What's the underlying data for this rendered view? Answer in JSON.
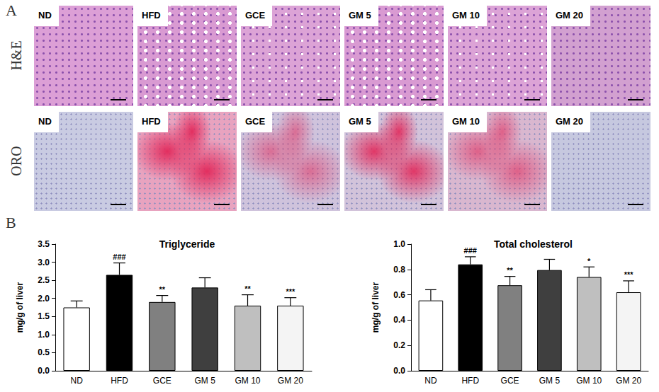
{
  "panel_a": {
    "label": "A",
    "rows": [
      {
        "label": "H&E",
        "panels": [
          "ND",
          "HFD",
          "GCE",
          "GM 5",
          "GM 10",
          "GM 20"
        ]
      },
      {
        "label": "ORO",
        "panels": [
          "ND",
          "HFD",
          "GCE",
          "GM 5",
          "GM 10",
          "GM 20"
        ]
      }
    ]
  },
  "panel_b": {
    "label": "B"
  },
  "chart_data": [
    {
      "type": "bar",
      "title": "Triglyceride",
      "y_label": "mg/g of liver",
      "categories": [
        "ND",
        "HFD",
        "GCE",
        "GM 5",
        "GM 10",
        "GM 20"
      ],
      "values": [
        1.75,
        2.65,
        1.9,
        2.3,
        1.8,
        1.8
      ],
      "errors": [
        0.18,
        0.33,
        0.18,
        0.27,
        0.3,
        0.22
      ],
      "annotations": [
        null,
        "###",
        "**",
        null,
        "**",
        "***"
      ],
      "colors": [
        "#ffffff",
        "#000000",
        "#808080",
        "#3f3f3f",
        "#bfbfbf",
        "#f4f4f4"
      ],
      "ylim": [
        0,
        3.5
      ],
      "yticks": [
        {
          "value": 0,
          "label": "0.0"
        },
        0.5,
        {
          "value": 1,
          "label": "1.0"
        },
        1.5,
        {
          "value": 2,
          "label": "2.0"
        },
        2.5,
        {
          "value": 3,
          "label": "3.0"
        },
        3.5
      ],
      "grid": false
    },
    {
      "type": "bar",
      "title": "Total cholesterol",
      "y_label": "mg/g of liver",
      "categories": [
        "ND",
        "HFD",
        "GCE",
        "GM 5",
        "GM 10",
        "GM 20"
      ],
      "values": [
        0.555,
        0.84,
        0.675,
        0.795,
        0.74,
        0.62
      ],
      "errors": [
        0.085,
        0.06,
        0.07,
        0.085,
        0.08,
        0.09
      ],
      "annotations": [
        null,
        "###",
        "**",
        null,
        "*",
        "***"
      ],
      "colors": [
        "#ffffff",
        "#000000",
        "#808080",
        "#3f3f3f",
        "#bfbfbf",
        "#f4f4f4"
      ],
      "ylim": [
        0,
        1
      ],
      "yticks": [
        {
          "value": 0,
          "label": "0.0"
        },
        0.2,
        0.4,
        0.6,
        0.8,
        {
          "value": 1,
          "label": "1.0"
        }
      ],
      "grid": false
    }
  ]
}
